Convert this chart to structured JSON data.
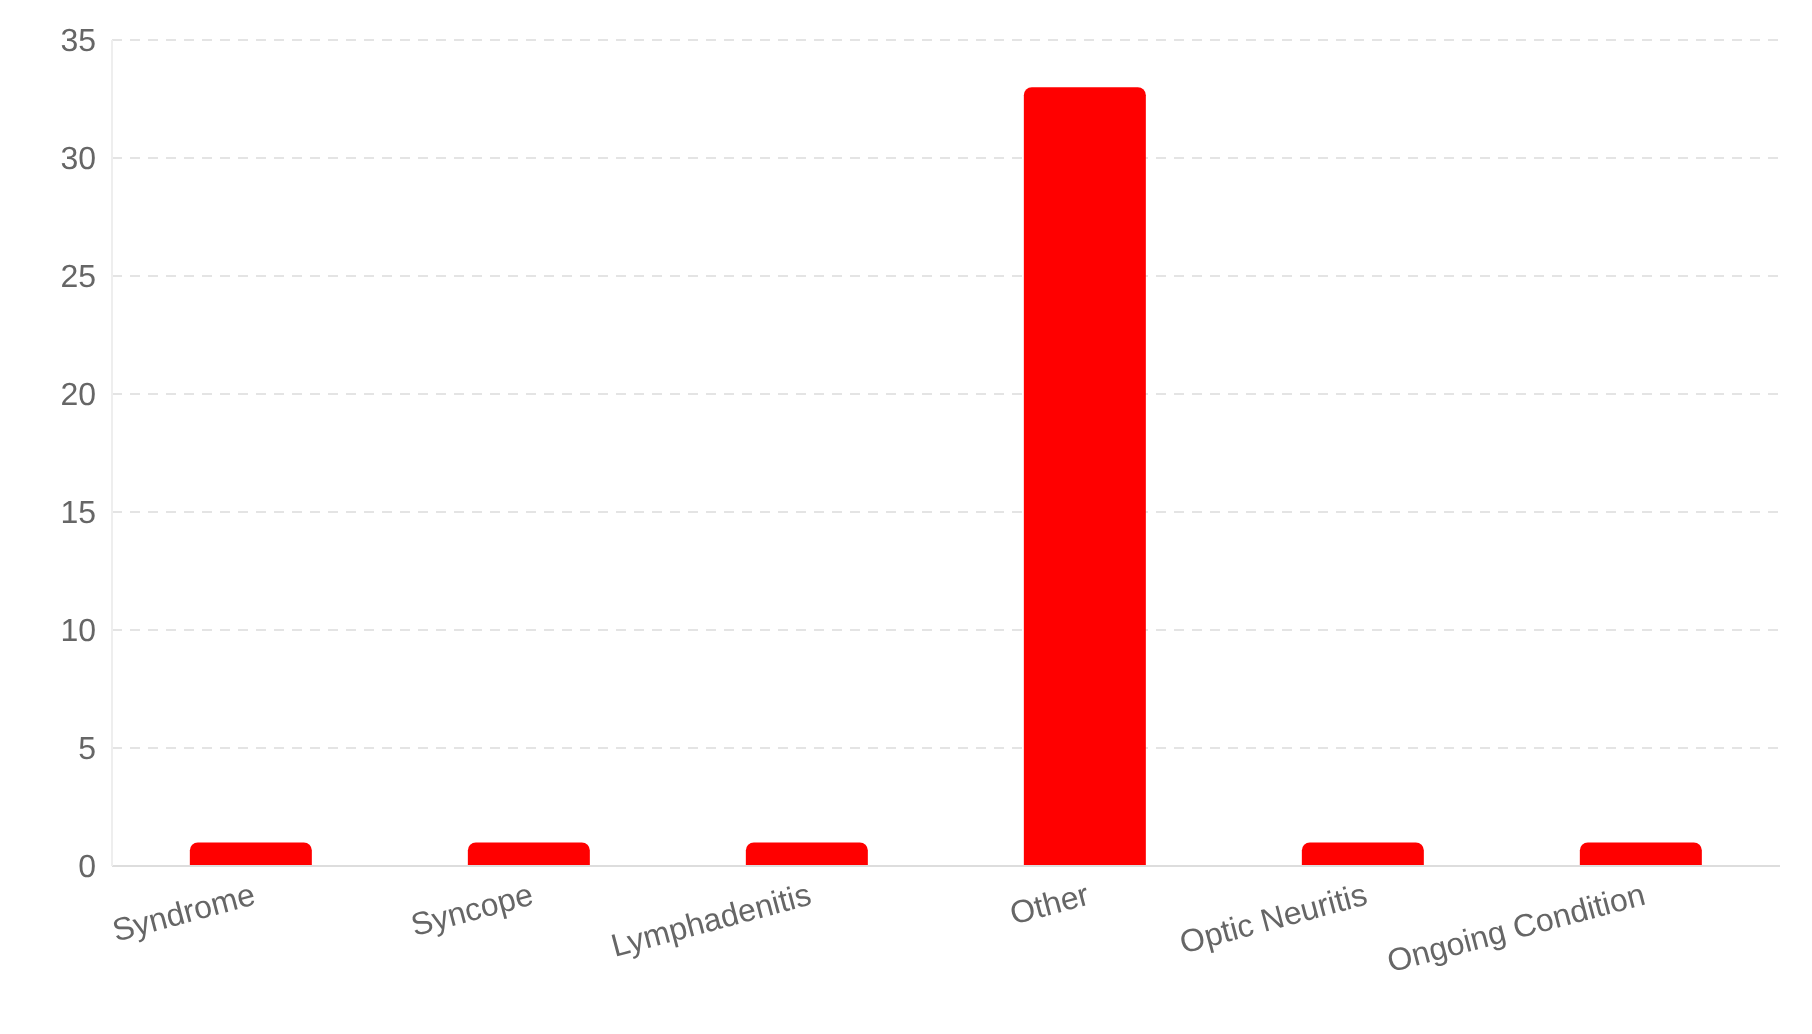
{
  "chart_data": {
    "type": "bar",
    "categories": [
      "Syndrome",
      "Syncope",
      "Lymphadenitis",
      "Other",
      "Optic Neuritis",
      "Ongoing Condition"
    ],
    "values": [
      1,
      1,
      1,
      33,
      1,
      1
    ],
    "color": "#ff0000",
    "ylim": [
      0,
      35
    ],
    "yticks": [
      0,
      5,
      10,
      15,
      20,
      25,
      30,
      35
    ],
    "grid": "y"
  }
}
